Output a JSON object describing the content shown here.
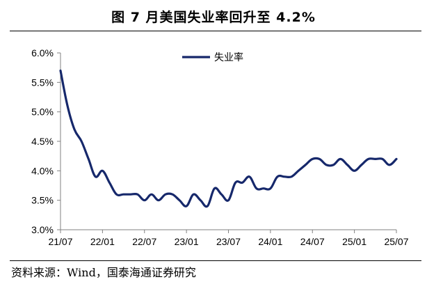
{
  "title": "图    7 月美国失业率回升至 4.2%",
  "source": "资料来源：Wind，国泰海通证券研究",
  "chart_data": {
    "type": "line",
    "title": "图    7 月美国失业率回升至 4.2%",
    "xlabel": "",
    "ylabel": "",
    "ylim": [
      3.0,
      6.0
    ],
    "yticks": [
      "3.0%",
      "3.5%",
      "4.0%",
      "4.5%",
      "5.0%",
      "5.5%",
      "6.0%"
    ],
    "xticks": [
      "21/07",
      "22/01",
      "22/07",
      "23/01",
      "23/07",
      "24/01",
      "24/07",
      "25/01",
      "25/07"
    ],
    "grid": false,
    "legend": "top-center",
    "line_color": "#16286b",
    "x": [
      "21/07",
      "21/08",
      "21/09",
      "21/10",
      "21/11",
      "21/12",
      "22/01",
      "22/02",
      "22/03",
      "22/04",
      "22/05",
      "22/06",
      "22/07",
      "22/08",
      "22/09",
      "22/10",
      "22/11",
      "22/12",
      "23/01",
      "23/02",
      "23/03",
      "23/04",
      "23/05",
      "23/06",
      "23/07",
      "23/08",
      "23/09",
      "23/10",
      "23/11",
      "23/12",
      "24/01",
      "24/02",
      "24/03",
      "24/04",
      "24/05",
      "24/06",
      "24/07",
      "24/08",
      "24/09",
      "24/10",
      "24/11",
      "24/12",
      "25/01",
      "25/02",
      "25/03",
      "25/04",
      "25/05",
      "25/06",
      "25/07"
    ],
    "series": [
      {
        "name": "失业率",
        "values": [
          5.7,
          5.1,
          4.7,
          4.5,
          4.2,
          3.9,
          4.0,
          3.8,
          3.6,
          3.6,
          3.6,
          3.6,
          3.5,
          3.6,
          3.5,
          3.6,
          3.6,
          3.5,
          3.4,
          3.6,
          3.5,
          3.4,
          3.7,
          3.6,
          3.5,
          3.8,
          3.8,
          3.9,
          3.7,
          3.7,
          3.7,
          3.9,
          3.9,
          3.9,
          4.0,
          4.1,
          4.2,
          4.2,
          4.1,
          4.1,
          4.2,
          4.1,
          4.0,
          4.1,
          4.2,
          4.2,
          4.2,
          4.1,
          4.2
        ]
      }
    ]
  }
}
